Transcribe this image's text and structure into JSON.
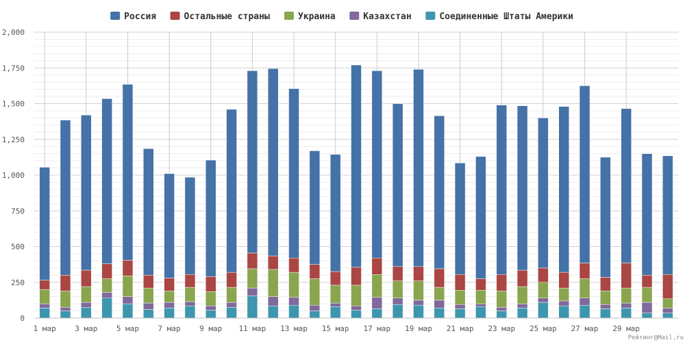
{
  "chart_data": {
    "type": "bar",
    "stacked": true,
    "categories": [
      "1 мар",
      "2 мар",
      "3 мар",
      "4 мар",
      "5 мар",
      "6 мар",
      "7 мар",
      "8 мар",
      "9 мар",
      "10 мар",
      "11 мар",
      "12 мар",
      "13 мар",
      "14 мар",
      "15 мар",
      "16 мар",
      "17 мар",
      "18 мар",
      "19 мар",
      "20 мар",
      "21 мар",
      "22 мар",
      "23 мар",
      "24 мар",
      "25 мар",
      "26 мар",
      "27 мар",
      "28 мар",
      "29 мар",
      "30 мар",
      "31 мар"
    ],
    "x_tick_labels": [
      "1 мар",
      "3 мар",
      "5 мар",
      "7 мар",
      "9 мар",
      "11 мар",
      "13 мар",
      "15 мар",
      "17 мар",
      "19 мар",
      "21 мар",
      "23 мар",
      "25 мар",
      "27 мар",
      "29 мар"
    ],
    "ylim": [
      0,
      2000
    ],
    "yticks": [
      0,
      250,
      500,
      750,
      1000,
      1250,
      1500,
      1750,
      2000
    ],
    "ytick_labels": [
      "0",
      "250",
      "500",
      "750",
      "1,000",
      "1,250",
      "1,500",
      "1,750",
      "2,000"
    ],
    "grid": true,
    "legend_position": "top-center",
    "series": [
      {
        "name": "Соединенные Штаты Америки",
        "color": "#3d96ae",
        "values": [
          70,
          50,
          75,
          140,
          100,
          60,
          70,
          85,
          55,
          75,
          155,
          85,
          90,
          50,
          80,
          55,
          65,
          95,
          90,
          70,
          65,
          80,
          50,
          70,
          110,
          85,
          90,
          65,
          70,
          35,
          35
        ]
      },
      {
        "name": "Казахстан",
        "color": "#80699b",
        "values": [
          30,
          25,
          35,
          40,
          50,
          45,
          40,
          30,
          30,
          35,
          55,
          65,
          55,
          40,
          25,
          30,
          80,
          45,
          35,
          55,
          30,
          20,
          25,
          30,
          30,
          35,
          50,
          30,
          35,
          75,
          35
        ]
      },
      {
        "name": "Украина",
        "color": "#89a54e",
        "values": [
          100,
          115,
          110,
          95,
          145,
          105,
          80,
          100,
          100,
          105,
          135,
          190,
          175,
          185,
          125,
          145,
          160,
          120,
          135,
          90,
          100,
          95,
          115,
          120,
          110,
          90,
          135,
          95,
          105,
          105,
          65
        ]
      },
      {
        "name": "Остальные страны",
        "color": "#aa4643",
        "values": [
          65,
          110,
          115,
          105,
          110,
          90,
          90,
          90,
          105,
          105,
          110,
          95,
          100,
          100,
          95,
          125,
          115,
          100,
          100,
          130,
          110,
          80,
          115,
          115,
          100,
          110,
          110,
          95,
          175,
          85,
          170
        ]
      },
      {
        "name": "Россия",
        "color": "#4572a7",
        "values": [
          790,
          1085,
          1085,
          1155,
          1230,
          885,
          730,
          680,
          815,
          1140,
          1275,
          1310,
          1185,
          795,
          820,
          1415,
          1310,
          1140,
          1380,
          1070,
          780,
          855,
          1185,
          1150,
          1050,
          1160,
          1240,
          840,
          1080,
          850,
          830
        ]
      }
    ],
    "legend_order": [
      "Россия",
      "Остальные страны",
      "Украина",
      "Казахстан",
      "Соединенные Штаты Америки"
    ],
    "credit": "Рейтинг@Mail.ru"
  }
}
